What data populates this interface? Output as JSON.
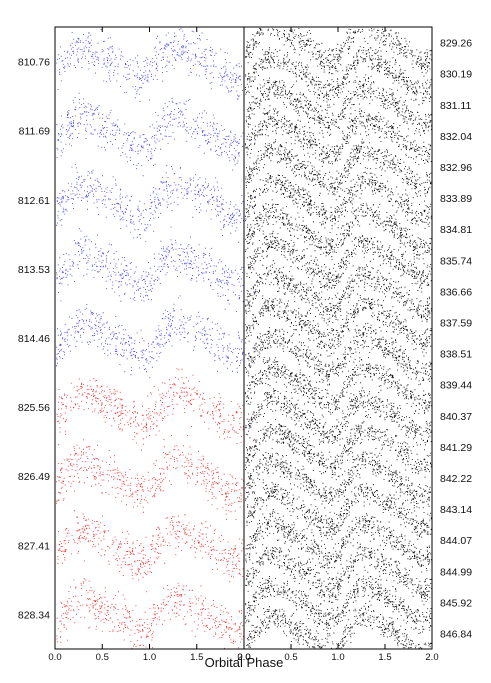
{
  "chart_data": {
    "type": "scatter",
    "xlabel": "Orbital Phase",
    "xlim": [
      0.0,
      2.0
    ],
    "x_ticks": [
      "0.0",
      "0.5",
      "1.0",
      "1.5",
      "2.0"
    ],
    "panels": [
      {
        "name": "left",
        "series": [
          {
            "color": "#3a3aee",
            "labels": [
              "810.76",
              "811.69",
              "812.61",
              "813.53",
              "814.46"
            ]
          },
          {
            "color": "#ee2222",
            "labels": [
              "825.56",
              "826.49",
              "827.41",
              "828.34"
            ]
          }
        ]
      },
      {
        "name": "right",
        "series": [
          {
            "color": "#000000",
            "labels": [
              "829.26",
              "830.19",
              "831.11",
              "832.04",
              "832.96",
              "833.89",
              "834.81",
              "835.74",
              "836.66",
              "837.59",
              "838.51",
              "839.44",
              "840.37",
              "841.29",
              "842.22",
              "843.14",
              "844.07",
              "844.99",
              "845.92",
              "846.84"
            ]
          }
        ]
      }
    ]
  }
}
